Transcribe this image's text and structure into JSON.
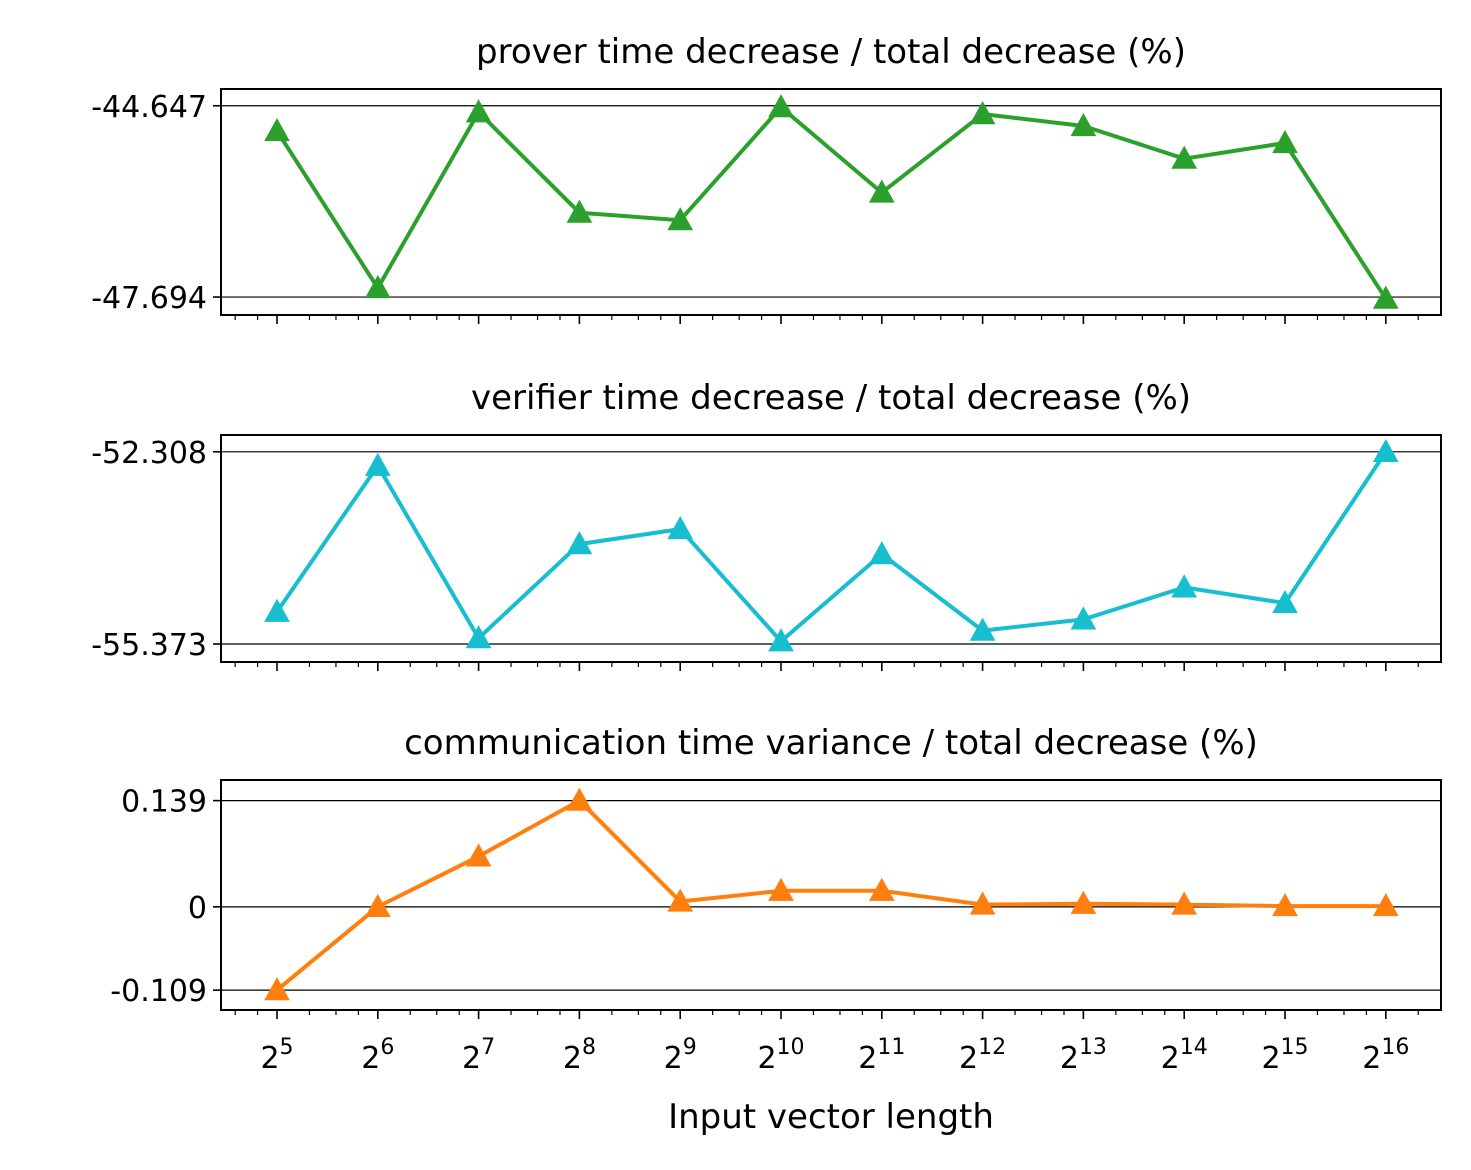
{
  "chart_data": [
    {
      "type": "line",
      "title": "prover time decrease / total decrease (%)",
      "x_tick_labels": [
        "2^5",
        "2^6",
        "2^7",
        "2^8",
        "2^9",
        "2^10",
        "2^11",
        "2^12",
        "2^13",
        "2^14",
        "2^15",
        "2^16"
      ],
      "x": [
        32,
        64,
        128,
        256,
        512,
        1024,
        2048,
        4096,
        8192,
        16384,
        32768,
        65536
      ],
      "x_scale": "log2",
      "series": [
        {
          "values": [
            -45.05,
            -47.55,
            -44.75,
            -46.35,
            -46.47,
            -44.67,
            -46.03,
            -44.78,
            -44.97,
            -45.49,
            -45.24,
            -47.72
          ],
          "color": "#2ca02c",
          "marker": "triangle"
        }
      ],
      "y_ticks": [
        -44.647,
        -47.694
      ],
      "y_tick_labels": [
        "-44.647",
        "-47.694"
      ],
      "ylim": [
        -47.98,
        -44.38
      ],
      "grid": "horizontal lines at y ticks"
    },
    {
      "type": "line",
      "title": "verifier time decrease / total decrease (%)",
      "x_tick_labels": [
        "2^5",
        "2^6",
        "2^7",
        "2^8",
        "2^9",
        "2^10",
        "2^11",
        "2^12",
        "2^13",
        "2^14",
        "2^15",
        "2^16"
      ],
      "x": [
        32,
        64,
        128,
        256,
        512,
        1024,
        2048,
        4096,
        8192,
        16384,
        32768,
        65536
      ],
      "x_scale": "log2",
      "series": [
        {
          "values": [
            -54.86,
            -52.53,
            -55.28,
            -53.78,
            -53.54,
            -55.33,
            -53.94,
            -55.16,
            -54.98,
            -54.47,
            -54.72,
            -52.31
          ],
          "color": "#17becf",
          "marker": "triangle"
        }
      ],
      "y_ticks": [
        -52.308,
        -55.373
      ],
      "y_tick_labels": [
        "-52.308",
        "-55.373"
      ],
      "ylim": [
        -55.66,
        -52.04
      ],
      "grid": "horizontal lines at y ticks"
    },
    {
      "type": "line",
      "title": "communication time variance / total decrease (%)",
      "xlabel": "Input vector length",
      "x_tick_labels": [
        "2^5",
        "2^6",
        "2^7",
        "2^8",
        "2^9",
        "2^10",
        "2^11",
        "2^12",
        "2^13",
        "2^14",
        "2^15",
        "2^16"
      ],
      "x_tick_bases": [
        "2",
        "2",
        "2",
        "2",
        "2",
        "2",
        "2",
        "2",
        "2",
        "2",
        "2",
        "2"
      ],
      "x_tick_exponents": [
        "5",
        "6",
        "7",
        "8",
        "9",
        "10",
        "11",
        "12",
        "13",
        "14",
        "15",
        "16"
      ],
      "x": [
        32,
        64,
        128,
        256,
        512,
        1024,
        2048,
        4096,
        8192,
        16384,
        32768,
        65536
      ],
      "x_scale": "log2",
      "series": [
        {
          "values": [
            -0.109,
            0.0,
            0.066,
            0.139,
            0.007,
            0.021,
            0.021,
            0.003,
            0.004,
            0.003,
            0.001,
            0.001
          ],
          "color": "#ff7f0e",
          "marker": "triangle"
        }
      ],
      "y_ticks": [
        0.139,
        0,
        -0.109
      ],
      "y_tick_labels": [
        "0.139",
        "0",
        "-0.109"
      ],
      "ylim": [
        -0.135,
        0.166
      ],
      "grid": "horizontal lines at y ticks"
    }
  ]
}
